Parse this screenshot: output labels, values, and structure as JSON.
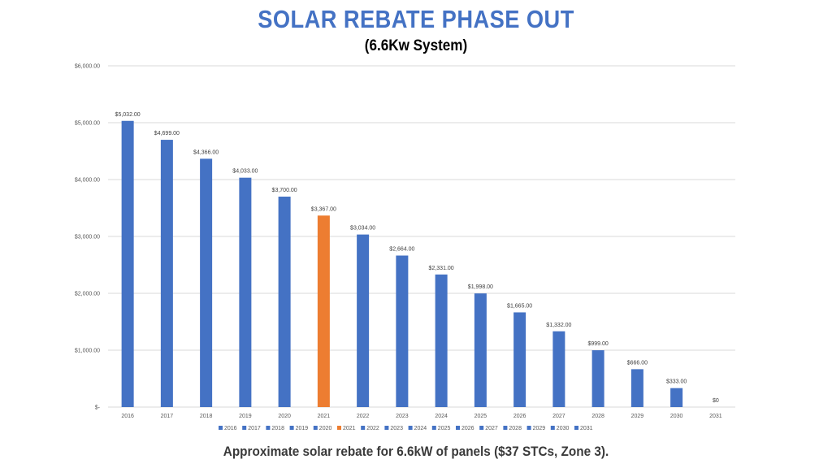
{
  "title": "SOLAR REBATE PHASE OUT",
  "subtitle": "(6.6Kw System)",
  "caption": "Approximate solar rebate for 6.6kW of panels ($37 STCs, Zone 3).",
  "colors": {
    "primary": "#4472c4",
    "highlight": "#ed7d31",
    "title": "#4472c4"
  },
  "chart_data": {
    "type": "bar",
    "categories": [
      "2016",
      "2017",
      "2018",
      "2019",
      "2020",
      "2021",
      "2022",
      "2023",
      "2024",
      "2025",
      "2026",
      "2027",
      "2028",
      "2029",
      "2030",
      "2031"
    ],
    "values": [
      5032,
      4699,
      4366,
      4033,
      3700,
      3367,
      3034,
      2664,
      2331,
      1998,
      1665,
      1332,
      999,
      666,
      333,
      0
    ],
    "data_labels": [
      "$5,032.00",
      "$4,699.00",
      "$4,366.00",
      "$4,033.00",
      "$3,700.00",
      "$3,367.00",
      "$3,034.00",
      "$2,664.00",
      "$2,331.00",
      "$1,998.00",
      "$1,665.00",
      "$1,332.00",
      "$999.00",
      "$666.00",
      "$333.00",
      "$0"
    ],
    "highlight_category": "2021",
    "ylim": [
      0,
      6000
    ],
    "yticks": [
      0,
      1000,
      2000,
      3000,
      4000,
      5000,
      6000
    ],
    "ytick_labels": [
      "$-",
      "$1,000.00",
      "$2,000.00",
      "$3,000.00",
      "$4,000.00",
      "$5,000.00",
      "$6,000.00"
    ],
    "legend": [
      "2016",
      "2017",
      "2018",
      "2019",
      "2020",
      "2021",
      "2022",
      "2023",
      "2024",
      "2025",
      "2026",
      "2027",
      "2028",
      "2029",
      "2030",
      "2031"
    ],
    "legend_position": "bottom",
    "grid": true
  }
}
